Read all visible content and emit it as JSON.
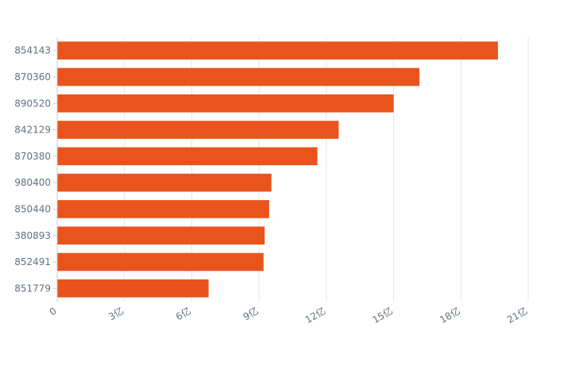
{
  "chart_data": {
    "type": "bar",
    "orientation": "horizontal",
    "categories": [
      "854143",
      "870360",
      "890520",
      "842129",
      "870380",
      "980400",
      "850440",
      "380893",
      "852491",
      "851779"
    ],
    "values": [
      19.65,
      16.15,
      15.0,
      12.55,
      11.6,
      9.55,
      9.45,
      9.25,
      9.2,
      6.75
    ],
    "unit": "亿",
    "xlim": [
      0,
      21
    ],
    "x_ticks": [
      "0",
      "3亿",
      "6亿",
      "9亿",
      "12亿",
      "15亿",
      "18亿",
      "21亿"
    ],
    "grid": "vertical",
    "legend": "none",
    "colors": {
      "bar": "#e8541c",
      "grid": "#e6e6e6",
      "axis": "#cccccc",
      "text": "#666f80"
    }
  }
}
